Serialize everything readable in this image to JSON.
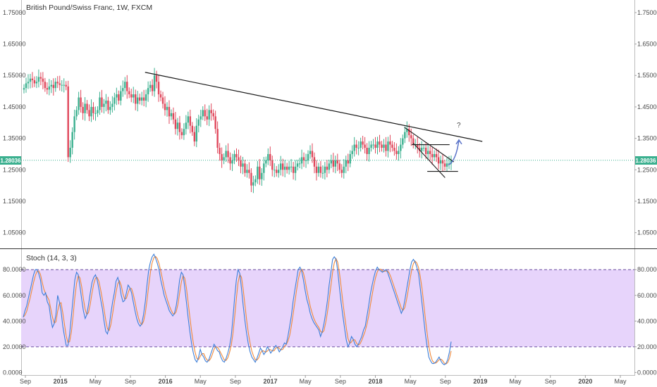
{
  "chart_data": [
    {
      "type": "candlestick",
      "title": "British Pound/Swiss Franc, 1W, FXCM",
      "yticks": [
        "1.75000",
        "1.65000",
        "1.55000",
        "1.45000",
        "1.35000",
        "1.25000",
        "1.15000",
        "1.05000"
      ],
      "ylim": [
        1.0,
        1.79
      ],
      "current_price": "1.28036",
      "xticks": [
        "Sep",
        "2015",
        "May",
        "Sep",
        "2016",
        "May",
        "Sep",
        "2017",
        "May",
        "Sep",
        "2018",
        "May",
        "Sep",
        "2019",
        "May",
        "Sep",
        "2020",
        "May"
      ],
      "annotation": "?",
      "colors": {
        "up": "#3bb08f",
        "down": "#e0475b",
        "price_line": "#3bb08f",
        "trendline": "#1a1a1a",
        "arrow": "#5b74c9"
      },
      "closes": [
        1.51,
        1.525,
        1.53,
        1.54,
        1.535,
        1.525,
        1.53,
        1.545,
        1.54,
        1.53,
        1.51,
        1.505,
        1.515,
        1.52,
        1.51,
        1.53,
        1.525,
        1.52,
        1.52,
        1.52,
        1.515,
        1.29,
        1.32,
        1.37,
        1.42,
        1.44,
        1.48,
        1.45,
        1.43,
        1.46,
        1.44,
        1.42,
        1.45,
        1.43,
        1.43,
        1.44,
        1.48,
        1.45,
        1.46,
        1.47,
        1.44,
        1.45,
        1.46,
        1.48,
        1.49,
        1.47,
        1.5,
        1.51,
        1.53,
        1.5,
        1.49,
        1.48,
        1.49,
        1.46,
        1.48,
        1.47,
        1.48,
        1.47,
        1.49,
        1.51,
        1.52,
        1.5,
        1.55,
        1.53,
        1.49,
        1.48,
        1.46,
        1.44,
        1.45,
        1.42,
        1.43,
        1.41,
        1.38,
        1.4,
        1.37,
        1.36,
        1.38,
        1.4,
        1.42,
        1.39,
        1.37,
        1.34,
        1.39,
        1.41,
        1.42,
        1.44,
        1.42,
        1.41,
        1.44,
        1.43,
        1.42,
        1.38,
        1.32,
        1.3,
        1.28,
        1.29,
        1.31,
        1.29,
        1.27,
        1.28,
        1.3,
        1.29,
        1.28,
        1.26,
        1.27,
        1.24,
        1.25,
        1.24,
        1.2,
        1.21,
        1.22,
        1.26,
        1.22,
        1.24,
        1.27,
        1.28,
        1.3,
        1.28,
        1.25,
        1.25,
        1.24,
        1.25,
        1.27,
        1.25,
        1.26,
        1.25,
        1.26,
        1.26,
        1.24,
        1.26,
        1.27,
        1.27,
        1.29,
        1.28,
        1.28,
        1.3,
        1.31,
        1.29,
        1.26,
        1.24,
        1.26,
        1.24,
        1.24,
        1.26,
        1.25,
        1.27,
        1.28,
        1.26,
        1.28,
        1.27,
        1.25,
        1.24,
        1.26,
        1.28,
        1.27,
        1.3,
        1.31,
        1.33,
        1.32,
        1.32,
        1.34,
        1.33,
        1.32,
        1.3,
        1.32,
        1.33,
        1.33,
        1.32,
        1.34,
        1.33,
        1.32,
        1.33,
        1.31,
        1.34,
        1.33,
        1.32,
        1.31,
        1.3,
        1.31,
        1.33,
        1.35,
        1.37,
        1.38,
        1.36,
        1.35,
        1.33,
        1.33,
        1.32,
        1.31,
        1.32,
        1.32,
        1.3,
        1.31,
        1.3,
        1.29,
        1.3,
        1.29,
        1.27,
        1.28,
        1.27,
        1.26,
        1.27,
        1.27,
        1.28
      ],
      "trendline": [
        {
          "date": "2015-11",
          "price": 1.56
        },
        {
          "date": "2018-10",
          "price": 1.32
        }
      ],
      "wedge_lines": [
        [
          {
            "date": "2018-04",
            "price": 1.385
          },
          {
            "date": "2018-09",
            "price": 1.275
          }
        ],
        [
          {
            "date": "2018-05",
            "price": 1.335
          },
          {
            "date": "2018-08",
            "price": 1.225
          }
        ]
      ],
      "box": {
        "price_top": 1.33,
        "price_bottom": 1.245,
        "date_start": "2018-05",
        "date_end": "2018-09"
      }
    },
    {
      "type": "line",
      "title": "Stoch (14, 3, 3)",
      "yticks": [
        "80.0000",
        "60.0000",
        "40.0000",
        "20.0000",
        "0.0000"
      ],
      "ylim": [
        -2,
        96
      ],
      "band": [
        20,
        80
      ],
      "colors": {
        "k": "#3d7fd9",
        "d": "#f08a3c",
        "band_fill": "#e7d4fb",
        "band_line": "#6a4ea0"
      },
      "k": [
        43,
        48,
        52,
        58,
        64,
        70,
        76,
        80,
        80,
        77,
        72,
        62,
        60,
        62,
        55,
        52,
        42,
        35,
        38,
        45,
        60,
        55,
        48,
        36,
        28,
        21,
        21,
        30,
        44,
        58,
        72,
        78,
        76,
        67,
        57,
        48,
        42,
        45,
        53,
        62,
        70,
        74,
        76,
        72,
        65,
        57,
        50,
        40,
        32,
        30,
        36,
        46,
        55,
        62,
        71,
        74,
        69,
        60,
        55,
        56,
        62,
        68,
        66,
        62,
        55,
        48,
        42,
        38,
        36,
        38,
        45,
        55,
        68,
        80,
        86,
        90,
        92,
        89,
        85,
        80,
        72,
        66,
        60,
        56,
        52,
        48,
        46,
        44,
        46,
        52,
        61,
        72,
        78,
        76,
        66,
        54,
        42,
        31,
        22,
        15,
        10,
        8,
        12,
        18,
        14,
        12,
        9,
        8,
        10,
        14,
        18,
        22,
        20,
        17,
        16,
        12,
        9,
        8,
        11,
        15,
        20,
        28,
        42,
        58,
        72,
        80,
        77,
        65,
        52,
        40,
        30,
        22,
        16,
        12,
        10,
        8,
        11,
        15,
        19,
        17,
        14,
        16,
        20,
        18,
        15,
        17,
        19,
        21,
        19,
        16,
        18,
        20,
        23,
        22,
        28,
        36,
        44,
        55,
        64,
        72,
        80,
        82,
        79,
        72,
        64,
        57,
        52,
        46,
        42,
        39,
        37,
        35,
        33,
        28,
        32,
        38,
        46,
        56,
        68,
        78,
        88,
        90,
        88,
        79,
        66,
        54,
        44,
        34,
        25,
        20,
        23,
        28,
        26,
        22,
        20,
        22,
        25,
        28,
        33,
        36,
        44,
        52,
        61,
        68,
        74,
        79,
        82,
        80,
        79,
        78,
        79,
        80,
        78,
        74,
        70,
        66,
        62,
        58,
        54,
        50,
        46,
        49,
        56,
        64,
        72,
        80,
        86,
        88,
        86,
        82,
        77,
        66,
        54,
        42,
        30,
        20,
        12,
        9,
        7,
        7,
        8,
        10,
        12,
        9,
        7,
        6,
        7,
        10,
        16,
        24
      ]
    }
  ]
}
